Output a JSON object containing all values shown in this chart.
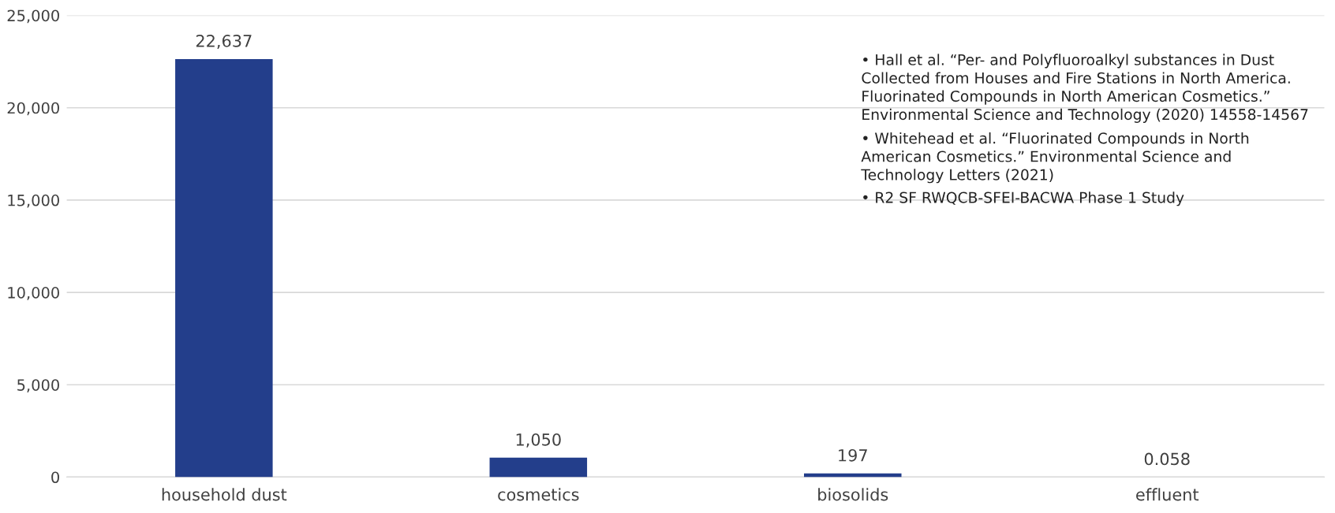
{
  "chart_data": {
    "type": "bar",
    "categories": [
      "household dust",
      "cosmetics",
      "biosolids",
      "effluent"
    ],
    "values": [
      22637,
      1050,
      197,
      0.058
    ],
    "value_labels": [
      "22,637",
      "1,050",
      "197",
      "0.058"
    ],
    "color": "#233e8b",
    "ylim": [
      0,
      25000
    ],
    "yticks": [
      {
        "value": 0,
        "label": "0"
      },
      {
        "value": 5000,
        "label": "5,000"
      },
      {
        "value": 10000,
        "label": "10,000"
      },
      {
        "value": 15000,
        "label": "15,000"
      },
      {
        "value": 20000,
        "label": "20,000"
      },
      {
        "value": 25000,
        "label": "25,000"
      }
    ],
    "grid": "y",
    "annotations": [
      "• Hall et al. “Per- and Polyfluoroalkyl substances in Dust\nCollected from Houses and Fire Stations in North America.\nFluorinated Compounds in North American Cosmetics.”\nEnvironmental Science and Technology (2020) 14558-14567",
      "• Whitehead et al. “Fluorinated Compounds in North\nAmerican Cosmetics.” Environmental Science and\nTechnology Letters (2021)",
      "• R2 SF RWQCB-SFEI-BACWA Phase 1 Study"
    ]
  }
}
